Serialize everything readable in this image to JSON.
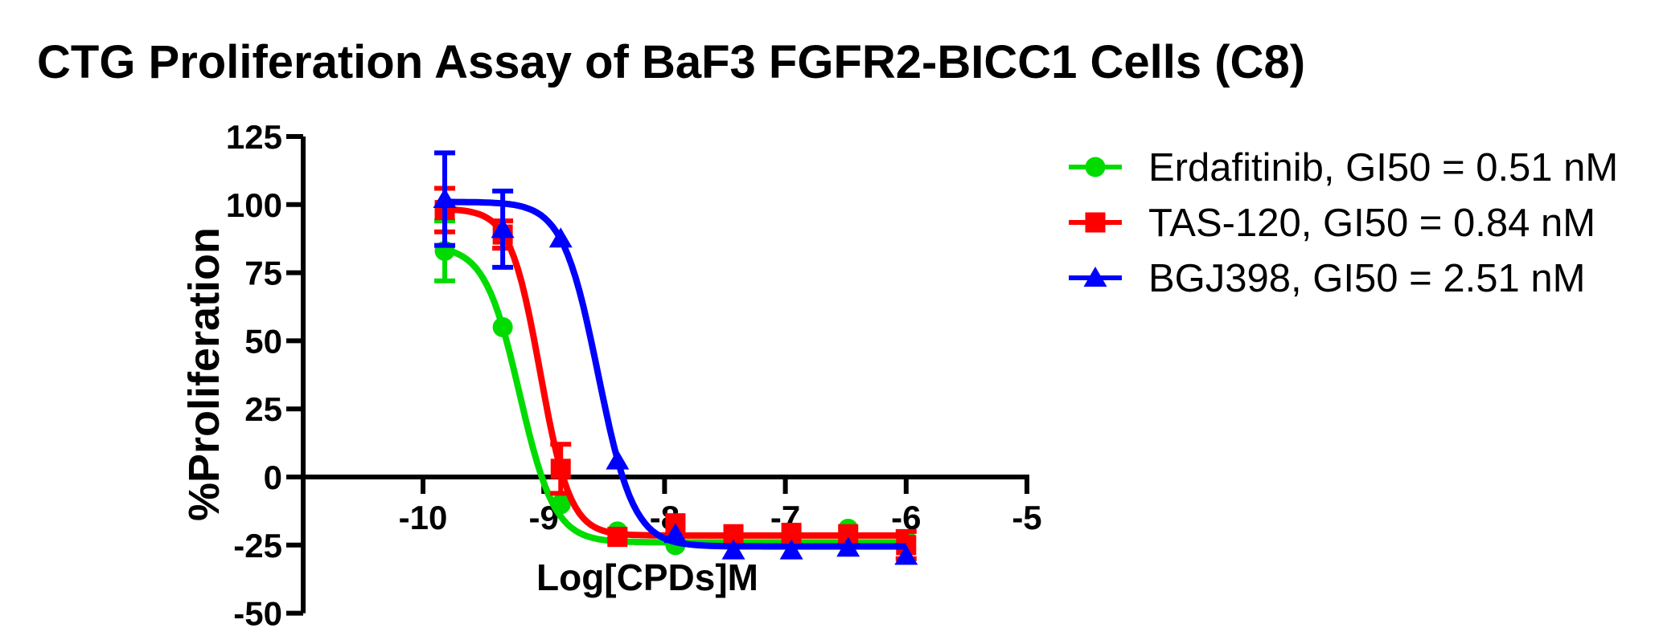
{
  "chart_data": {
    "type": "line",
    "title": "CTG Proliferation Assay of BaF3 FGFR2-BICC1 Cells (C8)",
    "xlabel": "Log[CPDs]M",
    "ylabel": "%Proliferation",
    "xlim": [
      -10.98,
      -5
    ],
    "ylim": [
      -50,
      125
    ],
    "xticks": [
      -10,
      -9,
      -8,
      -7,
      -6,
      -5
    ],
    "yticks": [
      125,
      100,
      75,
      50,
      25,
      0,
      -25,
      -50
    ],
    "grid": false,
    "legend_position": "right",
    "axis_color": "#000000",
    "background_color": "#ffffff",
    "x": [
      -9.82,
      -9.34,
      -8.86,
      -8.39,
      -7.91,
      -7.43,
      -6.95,
      -6.48,
      -6
    ],
    "series": [
      {
        "name": "Erdafitinib",
        "legend": "Erdafitinib, GI50 = 0.51 nM",
        "gi50": "0.51 nM",
        "color": "#00DC00",
        "marker": "circle",
        "y": [
          83,
          55,
          -10,
          -20,
          -25,
          -23,
          -22,
          -19,
          -23
        ],
        "err": [
          11,
          0,
          0,
          0,
          0,
          0,
          0,
          0,
          0
        ],
        "fit": {
          "top": 85,
          "bottom": -24,
          "logic50": -9.2,
          "hill": 3.0
        }
      },
      {
        "name": "TAS-120",
        "legend": "TAS-120, GI50 = 0.84 nM",
        "gi50": "0.84 nM",
        "color": "#FF0000",
        "marker": "square",
        "y": [
          98,
          89,
          3,
          -22,
          -17,
          -21,
          -20.5,
          -21,
          -25
        ],
        "err": [
          8,
          5,
          9,
          0,
          0,
          0,
          0,
          0,
          5
        ],
        "fit": {
          "top": 98.5,
          "bottom": -21.5,
          "logic50": -9.03,
          "hill": 3.5
        }
      },
      {
        "name": "BGJ398",
        "legend": "BGJ398, GI50 = 2.51 nM",
        "gi50": "2.51 nM",
        "color": "#0000FF",
        "marker": "triangle",
        "y": [
          102,
          91,
          87.5,
          6,
          -21,
          -27,
          -27,
          -26,
          -29
        ],
        "err": [
          17,
          14,
          0,
          0,
          0,
          0,
          0,
          0,
          0
        ],
        "fit": {
          "top": 101,
          "bottom": -25.5,
          "logic50": -8.55,
          "hill": 2.95
        }
      }
    ]
  }
}
